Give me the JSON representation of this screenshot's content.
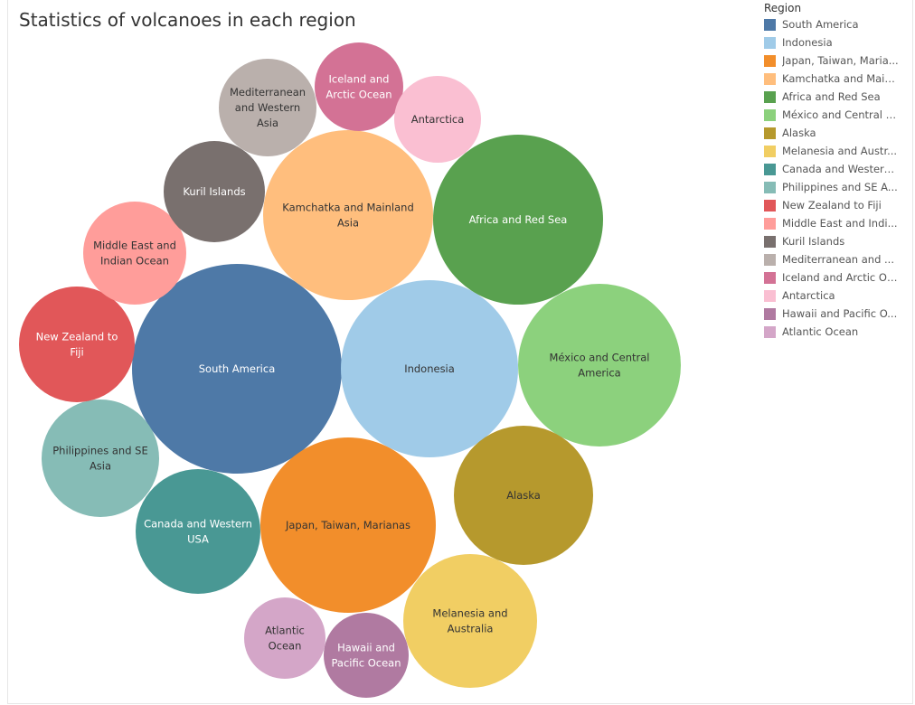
{
  "title": "Statistics of volcanoes in each region",
  "legend": {
    "title": "Region",
    "items": [
      {
        "label": "South America",
        "color": "#4e79a7"
      },
      {
        "label": "Indonesia",
        "color": "#a0cbe8"
      },
      {
        "label": "Japan, Taiwan, Maria...",
        "color": "#f28e2b"
      },
      {
        "label": "Kamchatka and Main...",
        "color": "#ffbe7d"
      },
      {
        "label": "Africa and Red Sea",
        "color": "#59a14f"
      },
      {
        "label": "México and Central A...",
        "color": "#8cd17d"
      },
      {
        "label": "Alaska",
        "color": "#b6992d"
      },
      {
        "label": "Melanesia and Austr...",
        "color": "#f1ce63"
      },
      {
        "label": "Canada and Western ...",
        "color": "#499894"
      },
      {
        "label": "Philippines and SE A...",
        "color": "#86bcb6"
      },
      {
        "label": "New Zealand to Fiji",
        "color": "#e15759"
      },
      {
        "label": "Middle East and Indi...",
        "color": "#ff9d9a"
      },
      {
        "label": "Kuril Islands",
        "color": "#79706e"
      },
      {
        "label": "Mediterranean and ...",
        "color": "#bab0ac"
      },
      {
        "label": "Iceland and Arctic Oc...",
        "color": "#d37295"
      },
      {
        "label": "Antarctica",
        "color": "#fabfd2"
      },
      {
        "label": "Hawaii and Pacific O...",
        "color": "#b07aa1"
      },
      {
        "label": "Atlantic Ocean",
        "color": "#d4a6c8"
      }
    ]
  },
  "chart_data": {
    "type": "bubble",
    "title": "Statistics of volcanoes in each region",
    "legend_title": "Region",
    "legend_position": "right",
    "series": [
      {
        "name": "South America",
        "label_lines": [
          "South America"
        ],
        "color": "#4e79a7",
        "text_color": "#ffffff"
      },
      {
        "name": "Indonesia",
        "label_lines": [
          "Indonesia"
        ],
        "color": "#a0cbe8",
        "text_color": "#333333"
      },
      {
        "name": "Japan, Taiwan, Marianas",
        "label_lines": [
          "Japan, Taiwan, Marianas"
        ],
        "color": "#f28e2b",
        "text_color": "#333333"
      },
      {
        "name": "Kamchatka and Mainland Asia",
        "label_lines": [
          "Kamchatka and Mainland",
          "Asia"
        ],
        "color": "#ffbe7d",
        "text_color": "#333333"
      },
      {
        "name": "Africa and Red Sea",
        "label_lines": [
          "Africa and Red Sea"
        ],
        "color": "#59a14f",
        "text_color": "#ffffff"
      },
      {
        "name": "México and Central America",
        "label_lines": [
          "México and Central",
          "America"
        ],
        "color": "#8cd17d",
        "text_color": "#333333"
      },
      {
        "name": "Alaska",
        "label_lines": [
          "Alaska"
        ],
        "color": "#b6992d",
        "text_color": "#333333"
      },
      {
        "name": "Melanesia and Australia",
        "label_lines": [
          "Melanesia and",
          "Australia"
        ],
        "color": "#f1ce63",
        "text_color": "#333333"
      },
      {
        "name": "Canada and Western USA",
        "label_lines": [
          "Canada and Western",
          "USA"
        ],
        "color": "#499894",
        "text_color": "#ffffff"
      },
      {
        "name": "Philippines and SE Asia",
        "label_lines": [
          "Philippines and SE",
          "Asia"
        ],
        "color": "#86bcb6",
        "text_color": "#333333"
      },
      {
        "name": "New Zealand to Fiji",
        "label_lines": [
          "New Zealand to",
          "Fiji"
        ],
        "color": "#e15759",
        "text_color": "#ffffff"
      },
      {
        "name": "Middle East and Indian Ocean",
        "label_lines": [
          "Middle East and",
          "Indian Ocean"
        ],
        "color": "#ff9d9a",
        "text_color": "#333333"
      },
      {
        "name": "Kuril Islands",
        "label_lines": [
          "Kuril Islands"
        ],
        "color": "#79706e",
        "text_color": "#ffffff"
      },
      {
        "name": "Mediterranean and Western Asia",
        "label_lines": [
          "Mediterranean",
          "and Western",
          "Asia"
        ],
        "color": "#bab0ac",
        "text_color": "#333333"
      },
      {
        "name": "Iceland and Arctic Ocean",
        "label_lines": [
          "Iceland and",
          "Arctic Ocean"
        ],
        "color": "#d37295",
        "text_color": "#ffffff"
      },
      {
        "name": "Antarctica",
        "label_lines": [
          "Antarctica"
        ],
        "color": "#fabfd2",
        "text_color": "#333333"
      },
      {
        "name": "Hawaii and Pacific Ocean",
        "label_lines": [
          "Hawaii and",
          "Pacific Ocean"
        ],
        "color": "#b07aa1",
        "text_color": "#ffffff"
      },
      {
        "name": "Atlantic Ocean",
        "label_lines": [
          "Atlantic",
          "Ocean"
        ],
        "color": "#d4a6c8",
        "text_color": "#333333"
      }
    ]
  }
}
